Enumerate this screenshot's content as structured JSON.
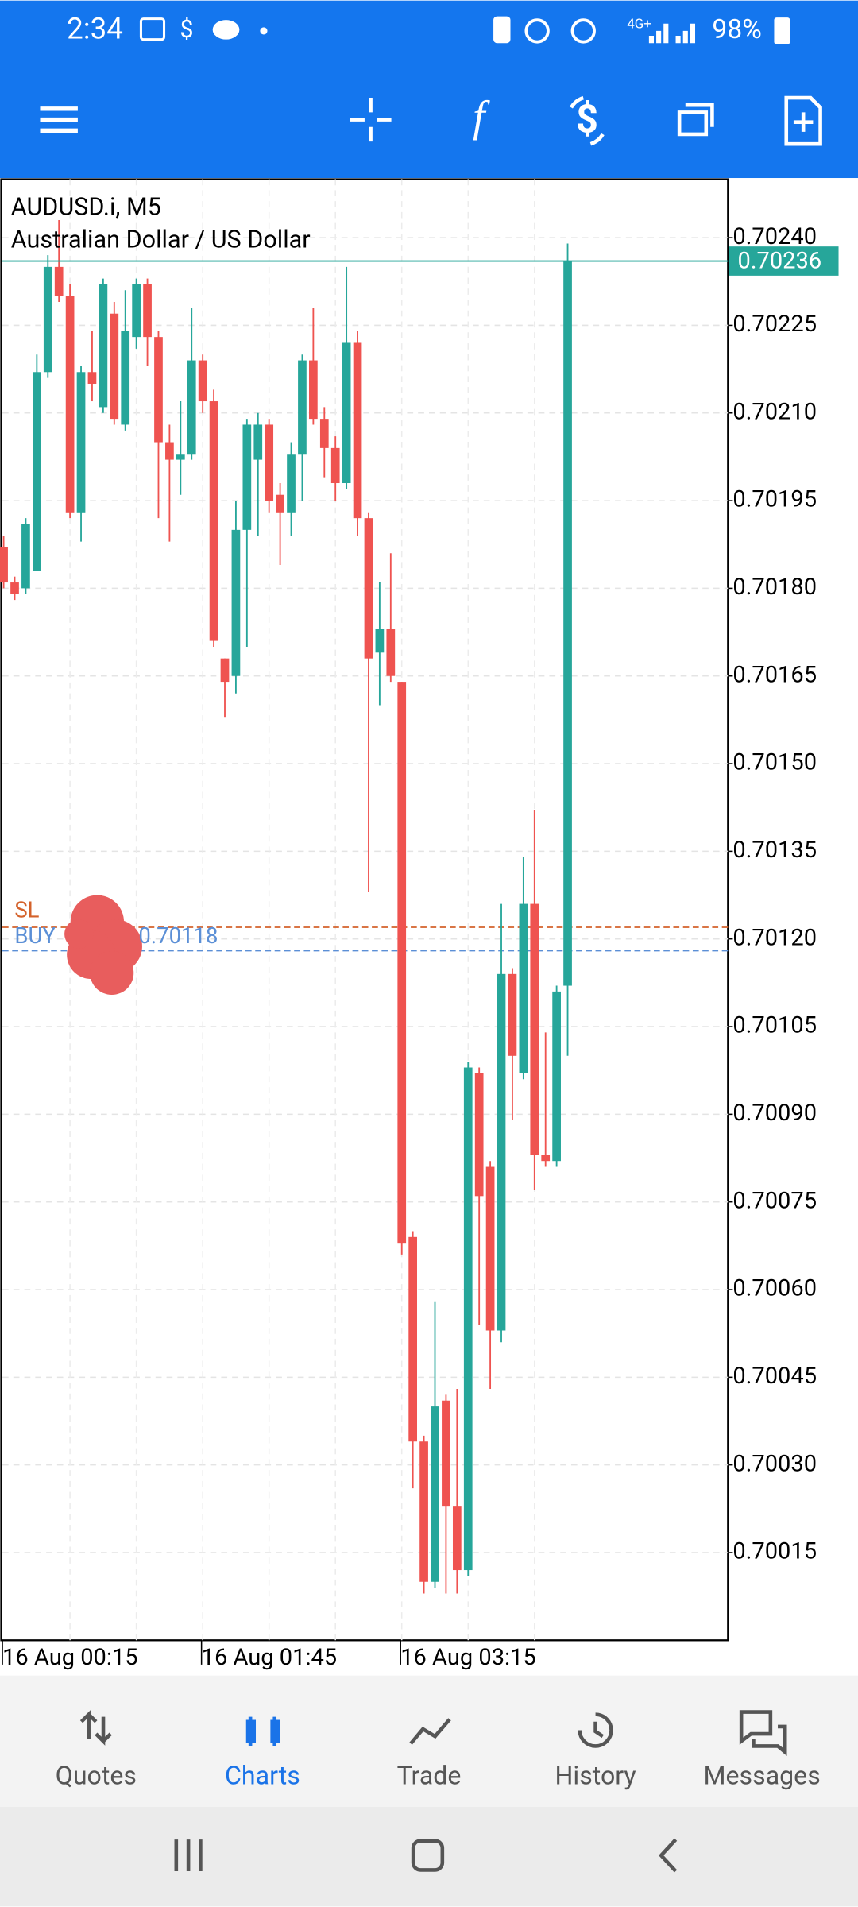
{
  "status_bar": {
    "time": "2:34",
    "notification": "$",
    "network": "4G+",
    "battery": "98%"
  },
  "toolbar": {
    "indicator_icon": "f"
  },
  "chart_data": {
    "type": "candlestick",
    "title": "AUDUSD.i, M5",
    "subtitle": "Australian Dollar / US Dollar",
    "categories": [
      "16 Aug 00:15",
      null,
      null,
      null,
      null,
      null,
      null,
      null,
      null,
      null,
      null,
      null,
      null,
      null,
      null,
      null,
      null,
      null,
      "16 Aug 01:45",
      null,
      null,
      null,
      null,
      null,
      null,
      null,
      null,
      null,
      null,
      null,
      null,
      null,
      null,
      null,
      null,
      null,
      "16 Aug 03:15",
      null,
      null,
      null,
      null,
      null,
      null,
      null,
      null,
      null,
      null,
      null,
      null,
      null,
      null,
      null
    ],
    "open": [
      0.70187,
      0.70181,
      0.7018,
      0.70183,
      0.70217,
      0.70235,
      0.7023,
      0.70193,
      0.70217,
      0.70211,
      0.70227,
      0.70208,
      0.70223,
      0.70232,
      0.70223,
      0.70205,
      0.70202,
      0.70203,
      0.70219,
      0.70212,
      0.70168,
      0.70165,
      0.7019,
      0.70202,
      0.70208,
      0.70196,
      0.70193,
      0.70203,
      0.70219,
      0.70209,
      0.70204,
      0.70198,
      0.70222,
      0.70192,
      0.70169,
      0.70173,
      0.70164,
      0.70069,
      0.70034,
      0.7001,
      0.70041,
      0.70023,
      0.70012,
      0.70097,
      0.70081,
      0.70053,
      0.70114,
      0.70097,
      0.70126,
      0.70083,
      0.70082,
      0.70112
    ],
    "high": [
      0.70189,
      0.70182,
      0.70192,
      0.7022,
      0.70237,
      0.70243,
      0.70232,
      0.70218,
      0.70224,
      0.70233,
      0.70229,
      0.70231,
      0.70233,
      0.70233,
      0.70224,
      0.70208,
      0.70212,
      0.70228,
      0.7022,
      0.70214,
      0.70168,
      0.70195,
      0.70209,
      0.7021,
      0.70209,
      0.70198,
      0.70205,
      0.7022,
      0.70228,
      0.70211,
      0.70206,
      0.70235,
      0.70224,
      0.70193,
      0.70181,
      0.70186,
      0.70164,
      0.7007,
      0.70035,
      0.70058,
      0.70042,
      0.70043,
      0.70099,
      0.70098,
      0.70082,
      0.70126,
      0.70115,
      0.70134,
      0.70142,
      0.70104,
      0.70112,
      0.70239
    ],
    "low": [
      0.7018,
      0.70178,
      0.70179,
      0.70183,
      0.70216,
      0.70229,
      0.70192,
      0.70188,
      0.70212,
      0.7021,
      0.70208,
      0.70207,
      0.70221,
      0.70218,
      0.70192,
      0.70188,
      0.70196,
      0.70202,
      0.7021,
      0.7017,
      0.70158,
      0.70162,
      0.7017,
      0.70189,
      0.70193,
      0.70184,
      0.70189,
      0.70195,
      0.70208,
      0.70199,
      0.70195,
      0.70197,
      0.70189,
      0.70128,
      0.7016,
      0.70164,
      0.70066,
      0.70026,
      0.70008,
      0.70009,
      0.70008,
      0.70008,
      0.70011,
      0.70054,
      0.70043,
      0.70051,
      0.70089,
      0.70096,
      0.70077,
      0.70081,
      0.70081,
      0.701
    ],
    "close": [
      0.70181,
      0.70179,
      0.70191,
      0.70217,
      0.70235,
      0.7023,
      0.70193,
      0.70217,
      0.70215,
      0.70232,
      0.70209,
      0.70224,
      0.70232,
      0.70223,
      0.70205,
      0.70202,
      0.70203,
      0.70219,
      0.70212,
      0.70171,
      0.70164,
      0.7019,
      0.70208,
      0.70208,
      0.70195,
      0.70193,
      0.70203,
      0.70219,
      0.70209,
      0.70204,
      0.70198,
      0.70222,
      0.70192,
      0.70168,
      0.70173,
      0.70165,
      0.70068,
      0.70034,
      0.7001,
      0.7004,
      0.70023,
      0.70012,
      0.70098,
      0.70076,
      0.70053,
      0.70114,
      0.701,
      0.70126,
      0.70083,
      0.70082,
      0.70111,
      0.70236
    ],
    "up_color": "#26a69a",
    "down_color": "#ef5350",
    "ylim": [
      0.7,
      0.7025
    ],
    "yticks": [
      {
        "value": 0.70015,
        "label": "0.70015"
      },
      {
        "value": 0.7003,
        "label": "0.70030"
      },
      {
        "value": 0.70045,
        "label": "0.70045"
      },
      {
        "value": 0.7006,
        "label": "0.70060"
      },
      {
        "value": 0.70075,
        "label": "0.70075"
      },
      {
        "value": 0.7009,
        "label": "0.70090"
      },
      {
        "value": 0.70105,
        "label": "0.70105"
      },
      {
        "value": 0.7012,
        "label": "0.70120"
      },
      {
        "value": 0.70135,
        "label": "0.70135"
      },
      {
        "value": 0.7015,
        "label": "0.70150"
      },
      {
        "value": 0.70165,
        "label": "0.70165"
      },
      {
        "value": 0.7018,
        "label": "0.70180"
      },
      {
        "value": 0.70195,
        "label": "0.70195"
      },
      {
        "value": 0.7021,
        "label": "0.70210"
      },
      {
        "value": 0.70225,
        "label": "0.70225"
      },
      {
        "value": 0.7024,
        "label": "0.70240"
      }
    ],
    "grid": true,
    "current_price": {
      "value": 0.70236,
      "label": "0.70236"
    },
    "sl_line": {
      "label": "SL",
      "value": 0.70122,
      "color": "#d4622b"
    },
    "buy_line": {
      "label": "BUY",
      "value": 0.70118,
      "price_label": "0.70118",
      "color": "#5b8fd6"
    }
  },
  "bottom_nav": {
    "items": [
      "Quotes",
      "Charts",
      "Trade",
      "History",
      "Messages"
    ],
    "active": 1
  }
}
